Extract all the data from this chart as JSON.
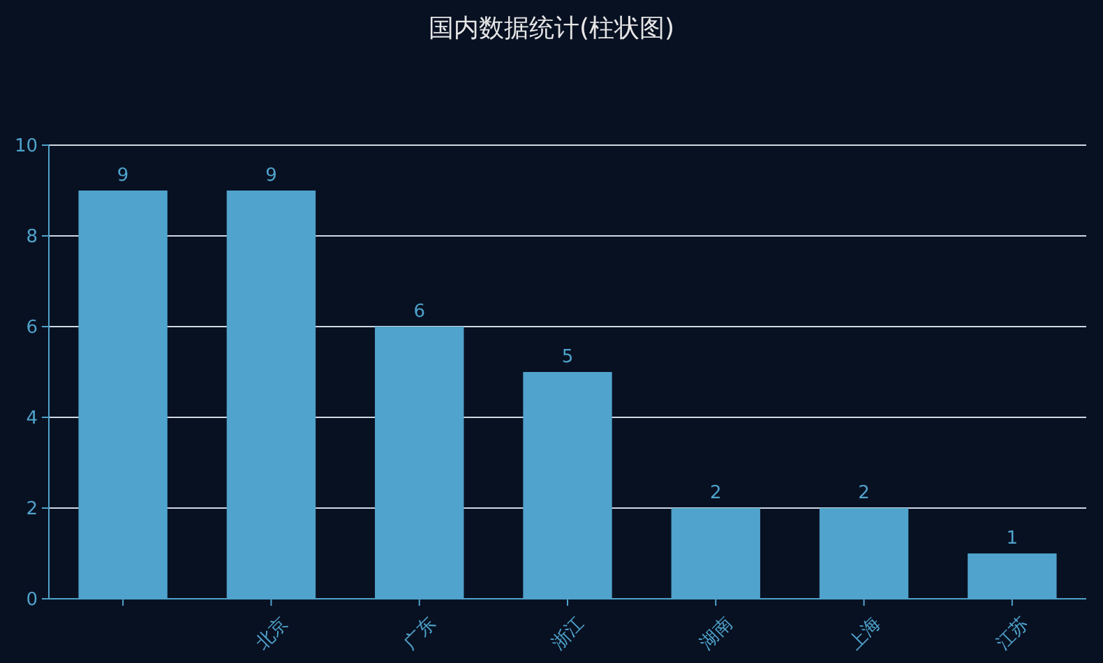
{
  "chart_data": {
    "type": "bar",
    "title": "国内数据统计(柱状图)",
    "categories": [
      null,
      "北京",
      "广东",
      "浙江",
      "湖南",
      "上海",
      "江苏"
    ],
    "values": [
      9,
      9,
      6,
      5,
      2,
      2,
      1
    ],
    "color": "#4fa3cc",
    "ylim": [
      0,
      10
    ],
    "yticks": [
      0,
      2,
      4,
      6,
      8,
      10
    ],
    "grid": "y",
    "data_labels": true
  }
}
